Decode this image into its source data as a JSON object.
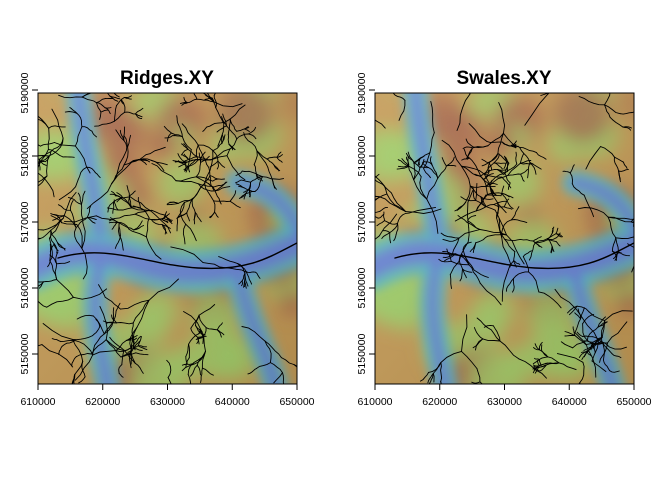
{
  "panels": [
    {
      "title": "Ridges.XY",
      "x_ticks": [
        "610000",
        "620000",
        "630000",
        "640000",
        "650000"
      ],
      "y_ticks": [
        "5150000",
        "5160000",
        "5170000",
        "5180000",
        "5190000"
      ]
    },
    {
      "title": "Swales.XY",
      "x_ticks": [
        "610000",
        "620000",
        "630000",
        "640000",
        "650000"
      ],
      "y_ticks": [
        "5150000",
        "5160000",
        "5170000",
        "5180000",
        "5190000"
      ]
    }
  ],
  "colors": {
    "valley": "#6a7fd6",
    "low": "#56b7c8",
    "mid": "#9fd06a",
    "high": "#c49a55",
    "peak": "#a8624a",
    "lines": "#000000"
  }
}
